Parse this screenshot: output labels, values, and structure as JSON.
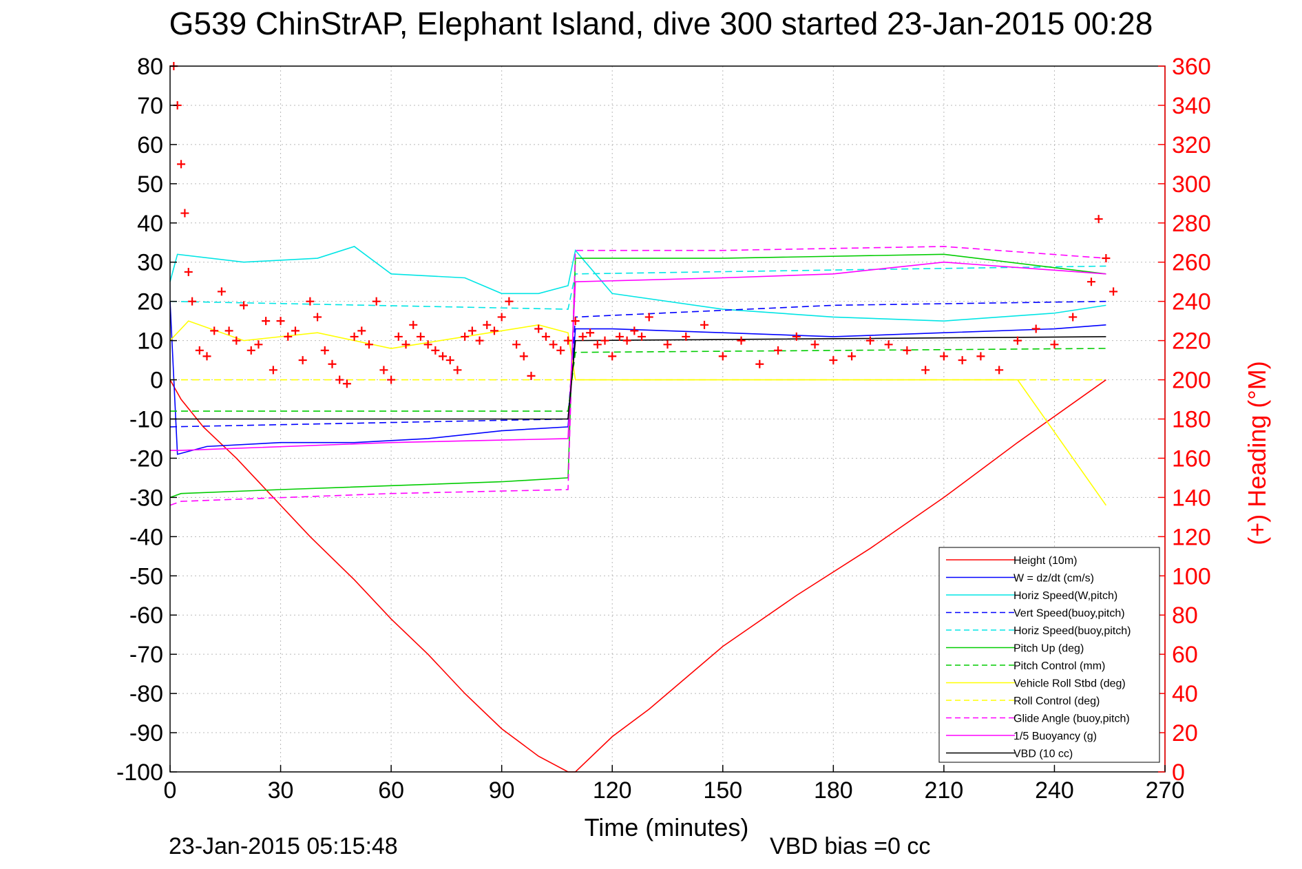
{
  "chart_data": {
    "type": "line",
    "title": "G539 ChinStrAP, Elephant Island, dive 300 started 23-Jan-2015 00:28",
    "xlabel": "Time (minutes)",
    "ylabel_right": "(+) Heading (°M)",
    "footer_left": "23-Jan-2015 05:15:48",
    "footer_right": "VBD bias =0 cc",
    "xlim": [
      0,
      270
    ],
    "ylim": [
      -100,
      80
    ],
    "ylim_right": [
      0,
      360
    ],
    "x_ticks": [
      "0",
      "30",
      "60",
      "90",
      "120",
      "150",
      "180",
      "210",
      "240",
      "270"
    ],
    "y_ticks": [
      "80",
      "70",
      "60",
      "50",
      "40",
      "30",
      "20",
      "10",
      "0",
      "-10",
      "-20",
      "-30",
      "-40",
      "-50",
      "-60",
      "-70",
      "-80",
      "-90",
      "-100"
    ],
    "y_ticks_right": [
      "360",
      "340",
      "320",
      "300",
      "280",
      "260",
      "240",
      "220",
      "200",
      "180",
      "160",
      "140",
      "120",
      "100",
      "80",
      "60",
      "40",
      "20",
      "0"
    ],
    "grid": true,
    "legend_position": "bottom-right",
    "colors": {
      "axis_right": "#ff0000",
      "heading_marker": "#ff0000"
    },
    "series": [
      {
        "name": "Height (10m)",
        "color": "#ff0000",
        "style": "solid",
        "x": [
          0,
          3,
          9,
          18,
          28,
          38,
          50,
          60,
          70,
          80,
          90,
          100,
          108,
          110,
          120,
          130,
          150,
          170,
          190,
          210,
          230,
          254
        ],
        "values": [
          0,
          -5,
          -12,
          -20,
          -30,
          -40,
          -51,
          -61,
          -70,
          -80,
          -89,
          -96,
          -100,
          -100,
          -91,
          -84,
          -68,
          -55,
          -43,
          -30,
          -16,
          0
        ]
      },
      {
        "name": "W = dz/dt (cm/s)",
        "color": "#0000ff",
        "style": "solid",
        "x": [
          0,
          2,
          10,
          30,
          50,
          70,
          90,
          108,
          110,
          120,
          150,
          180,
          210,
          240,
          254
        ],
        "values": [
          20,
          -19,
          -17,
          -16,
          -16,
          -15,
          -13,
          -12,
          13,
          13,
          12,
          11,
          12,
          13,
          14
        ]
      },
      {
        "name": "Horiz Speed(W,pitch)",
        "color": "#00e5e5",
        "style": "solid",
        "x": [
          0,
          2,
          20,
          40,
          50,
          60,
          80,
          90,
          100,
          108,
          110,
          120,
          150,
          180,
          210,
          240,
          254
        ],
        "values": [
          25,
          32,
          30,
          31,
          34,
          27,
          26,
          22,
          22,
          24,
          33,
          22,
          18,
          16,
          15,
          17,
          19
        ]
      },
      {
        "name": "Vert Speed(buoy,pitch)",
        "color": "#0000ff",
        "style": "dashed",
        "x": [
          0,
          108,
          110,
          180,
          254
        ],
        "values": [
          -12,
          -10,
          16,
          19,
          20
        ]
      },
      {
        "name": "Horiz Speed(buoy,pitch)",
        "color": "#00e5e5",
        "style": "dashed",
        "x": [
          0,
          108,
          110,
          180,
          254
        ],
        "values": [
          20,
          18,
          27,
          28,
          29
        ]
      },
      {
        "name": "Pitch Up (deg)",
        "color": "#00cc00",
        "style": "solid",
        "x": [
          0,
          3,
          30,
          60,
          90,
          108,
          110,
          150,
          210,
          254
        ],
        "values": [
          -30,
          -29,
          -28,
          -27,
          -26,
          -25,
          31,
          31,
          32,
          27
        ]
      },
      {
        "name": "Pitch Control (mm)",
        "color": "#00cc00",
        "style": "dashed",
        "x": [
          0,
          108,
          110,
          254
        ],
        "values": [
          -8,
          -8,
          7,
          8
        ]
      },
      {
        "name": "Vehicle Roll Stbd (deg)",
        "color": "#ffff00",
        "style": "solid",
        "x": [
          0,
          5,
          20,
          40,
          60,
          80,
          100,
          108,
          110,
          150,
          190,
          230,
          254
        ],
        "values": [
          10,
          15,
          10,
          12,
          8,
          11,
          14,
          12,
          0,
          0,
          0,
          0,
          -32
        ]
      },
      {
        "name": "Roll Control (deg)",
        "color": "#ffff00",
        "style": "dashed",
        "x": [
          0,
          108,
          110,
          254
        ],
        "values": [
          0,
          0,
          0,
          0
        ]
      },
      {
        "name": "Glide Angle (buoy,pitch)",
        "color": "#ff00ff",
        "style": "dashed",
        "x": [
          0,
          3,
          60,
          108,
          110,
          150,
          210,
          254
        ],
        "values": [
          -32,
          -31,
          -29,
          -28,
          33,
          33,
          34,
          31
        ]
      },
      {
        "name": "1/5 Buoyancy (g)",
        "color": "#ff00ff",
        "style": "solid",
        "x": [
          0,
          3,
          60,
          108,
          110,
          150,
          180,
          210,
          254
        ],
        "values": [
          -18,
          -18,
          -16,
          -15,
          25,
          26,
          27,
          30,
          27
        ]
      },
      {
        "name": "VBD (10 cc)",
        "color": "#000000",
        "style": "solid",
        "x": [
          0,
          2,
          108,
          110,
          254
        ],
        "values": [
          -10,
          -10,
          -10,
          10,
          11
        ]
      }
    ],
    "heading": {
      "name": "(+) Heading (°M)",
      "color": "#ff0000",
      "marker": "+",
      "x": [
        1,
        2,
        3,
        4,
        5,
        6,
        8,
        10,
        12,
        14,
        16,
        18,
        20,
        22,
        24,
        26,
        28,
        30,
        32,
        34,
        36,
        38,
        40,
        42,
        44,
        46,
        48,
        50,
        52,
        54,
        56,
        58,
        60,
        62,
        64,
        66,
        68,
        70,
        72,
        74,
        76,
        78,
        80,
        82,
        84,
        86,
        88,
        90,
        92,
        94,
        96,
        98,
        100,
        102,
        104,
        106,
        108,
        110,
        112,
        114,
        116,
        118,
        120,
        122,
        124,
        126,
        128,
        130,
        135,
        140,
        145,
        150,
        155,
        160,
        165,
        170,
        175,
        180,
        185,
        190,
        195,
        200,
        205,
        210,
        215,
        220,
        225,
        230,
        235,
        240,
        245,
        250,
        252,
        254,
        256
      ],
      "values": [
        360,
        340,
        310,
        285,
        255,
        240,
        215,
        212,
        225,
        245,
        225,
        220,
        238,
        215,
        218,
        230,
        205,
        230,
        222,
        225,
        210,
        240,
        232,
        215,
        208,
        200,
        198,
        222,
        225,
        218,
        240,
        205,
        200,
        222,
        218,
        228,
        222,
        218,
        215,
        212,
        210,
        205,
        222,
        225,
        220,
        228,
        225,
        232,
        240,
        218,
        212,
        202,
        226,
        222,
        218,
        215,
        220,
        230,
        222,
        224,
        218,
        220,
        212,
        222,
        220,
        225,
        222,
        232,
        218,
        222,
        228,
        212,
        220,
        208,
        215,
        222,
        218,
        210,
        212,
        220,
        218,
        215,
        205,
        212,
        210,
        212,
        205,
        220,
        226,
        218,
        232,
        250,
        282,
        262,
        245
      ]
    }
  }
}
